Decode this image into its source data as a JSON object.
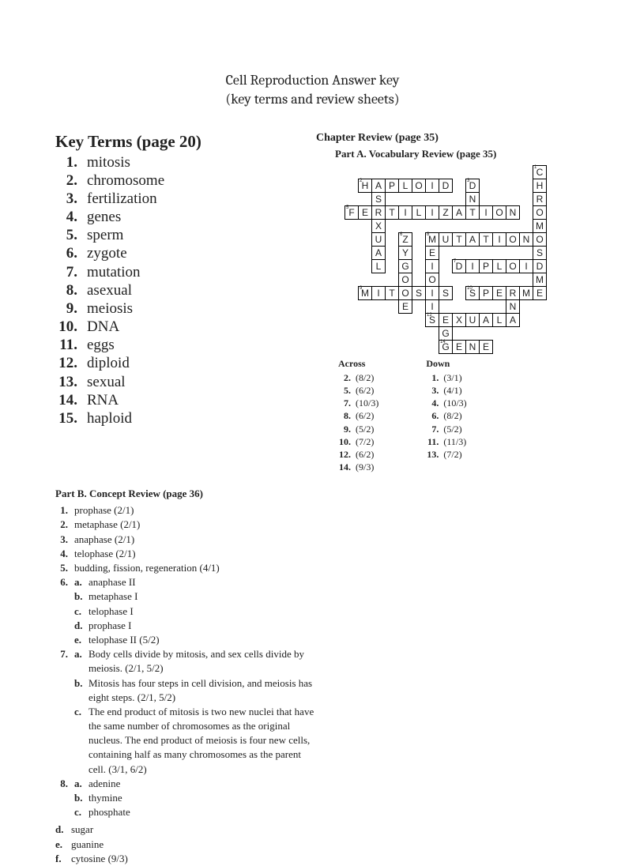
{
  "title": {
    "line1": "Cell Reproduction Answer key",
    "line2": "(key terms and review sheets)"
  },
  "keyTerms": {
    "heading": "Key Terms (page 20)",
    "items": [
      {
        "n": "1.",
        "t": "mitosis"
      },
      {
        "n": "2.",
        "t": "chromosome"
      },
      {
        "n": "3.",
        "t": "fertilization"
      },
      {
        "n": "4.",
        "t": "genes"
      },
      {
        "n": "5.",
        "t": "sperm"
      },
      {
        "n": "6.",
        "t": "zygote"
      },
      {
        "n": "7.",
        "t": "mutation"
      },
      {
        "n": "8.",
        "t": "asexual"
      },
      {
        "n": "9.",
        "t": "meiosis"
      },
      {
        "n": "10.",
        "t": "DNA"
      },
      {
        "n": "11.",
        "t": "eggs"
      },
      {
        "n": "12.",
        "t": "diploid"
      },
      {
        "n": "13.",
        "t": "sexual"
      },
      {
        "n": "14.",
        "t": "RNA"
      },
      {
        "n": "15.",
        "t": "haploid"
      }
    ]
  },
  "review": {
    "heading": "Chapter Review (page 35)",
    "partA": "Part A. Vocabulary Review (page 35)"
  },
  "crossword": {
    "cells": [
      {
        "r": 0,
        "c": 14,
        "l": "C",
        "n": "1"
      },
      {
        "r": 1,
        "c": 1,
        "l": "H",
        "n": "2"
      },
      {
        "r": 1,
        "c": 2,
        "l": "A"
      },
      {
        "r": 1,
        "c": 3,
        "l": "P"
      },
      {
        "r": 1,
        "c": 4,
        "l": "L"
      },
      {
        "r": 1,
        "c": 5,
        "l": "O"
      },
      {
        "r": 1,
        "c": 6,
        "l": "I"
      },
      {
        "r": 1,
        "c": 7,
        "l": "D"
      },
      {
        "r": 1,
        "c": 9,
        "l": "D",
        "n": "3"
      },
      {
        "r": 1,
        "c": 14,
        "l": "H"
      },
      {
        "r": 2,
        "c": 2,
        "l": "S"
      },
      {
        "r": 2,
        "c": 9,
        "l": "N"
      },
      {
        "r": 2,
        "c": 14,
        "l": "R"
      },
      {
        "r": 3,
        "c": 0,
        "l": "F",
        "n": "5"
      },
      {
        "r": 3,
        "c": 1,
        "l": "E"
      },
      {
        "r": 3,
        "c": 2,
        "l": "R"
      },
      {
        "r": 3,
        "c": 3,
        "l": "T"
      },
      {
        "r": 3,
        "c": 4,
        "l": "I"
      },
      {
        "r": 3,
        "c": 5,
        "l": "L"
      },
      {
        "r": 3,
        "c": 6,
        "l": "I"
      },
      {
        "r": 3,
        "c": 7,
        "l": "Z"
      },
      {
        "r": 3,
        "c": 8,
        "l": "A"
      },
      {
        "r": 3,
        "c": 9,
        "l": "T"
      },
      {
        "r": 3,
        "c": 10,
        "l": "I"
      },
      {
        "r": 3,
        "c": 11,
        "l": "O"
      },
      {
        "r": 3,
        "c": 12,
        "l": "N"
      },
      {
        "r": 3,
        "c": 14,
        "l": "O"
      },
      {
        "r": 4,
        "c": 2,
        "l": "X"
      },
      {
        "r": 4,
        "c": 14,
        "l": "M"
      },
      {
        "r": 5,
        "c": 2,
        "l": "U"
      },
      {
        "r": 5,
        "c": 4,
        "l": "Z",
        "n": "6"
      },
      {
        "r": 5,
        "c": 6,
        "l": "M",
        "n": "8"
      },
      {
        "r": 5,
        "c": 7,
        "l": "U"
      },
      {
        "r": 5,
        "c": 8,
        "l": "T"
      },
      {
        "r": 5,
        "c": 9,
        "l": "A"
      },
      {
        "r": 5,
        "c": 10,
        "l": "T"
      },
      {
        "r": 5,
        "c": 11,
        "l": "I"
      },
      {
        "r": 5,
        "c": 12,
        "l": "O"
      },
      {
        "r": 5,
        "c": 13,
        "l": "N"
      },
      {
        "r": 5,
        "c": 14,
        "l": "O"
      },
      {
        "r": 6,
        "c": 2,
        "l": "A"
      },
      {
        "r": 6,
        "c": 4,
        "l": "Y"
      },
      {
        "r": 6,
        "c": 6,
        "l": "E"
      },
      {
        "r": 6,
        "c": 14,
        "l": "S"
      },
      {
        "r": 7,
        "c": 2,
        "l": "L"
      },
      {
        "r": 7,
        "c": 4,
        "l": "G"
      },
      {
        "r": 7,
        "c": 6,
        "l": "I"
      },
      {
        "r": 7,
        "c": 8,
        "l": "D",
        "n": "7"
      },
      {
        "r": 7,
        "c": 9,
        "l": "I"
      },
      {
        "r": 7,
        "c": 10,
        "l": "P"
      },
      {
        "r": 7,
        "c": 11,
        "l": "L"
      },
      {
        "r": 7,
        "c": 12,
        "l": "O"
      },
      {
        "r": 7,
        "c": 13,
        "l": "I"
      },
      {
        "r": 7,
        "c": 14,
        "l": "D"
      },
      {
        "r": 8,
        "c": 4,
        "l": "O"
      },
      {
        "r": 8,
        "c": 6,
        "l": "O"
      },
      {
        "r": 8,
        "c": 14,
        "l": "M"
      },
      {
        "r": 9,
        "c": 1,
        "l": "M",
        "n": "9"
      },
      {
        "r": 9,
        "c": 2,
        "l": "I"
      },
      {
        "r": 9,
        "c": 3,
        "l": "T"
      },
      {
        "r": 9,
        "c": 4,
        "l": "O"
      },
      {
        "r": 9,
        "c": 5,
        "l": "S"
      },
      {
        "r": 9,
        "c": 6,
        "l": "I"
      },
      {
        "r": 9,
        "c": 7,
        "l": "S"
      },
      {
        "r": 9,
        "c": 9,
        "l": "S",
        "n": "10"
      },
      {
        "r": 9,
        "c": 10,
        "l": "P"
      },
      {
        "r": 9,
        "c": 11,
        "l": "E"
      },
      {
        "r": 9,
        "c": 12,
        "l": "R"
      },
      {
        "r": 9,
        "c": 13,
        "l": "M"
      },
      {
        "r": 9,
        "c": 14,
        "l": "E"
      },
      {
        "r": 10,
        "c": 4,
        "l": "E"
      },
      {
        "r": 10,
        "c": 6,
        "l": "I"
      },
      {
        "r": 10,
        "c": 12,
        "l": "N"
      },
      {
        "r": 11,
        "c": 6,
        "l": "S",
        "n": "12"
      },
      {
        "r": 11,
        "c": 7,
        "l": "E"
      },
      {
        "r": 11,
        "c": 8,
        "l": "X"
      },
      {
        "r": 11,
        "c": 9,
        "l": "U"
      },
      {
        "r": 11,
        "c": 10,
        "l": "A"
      },
      {
        "r": 11,
        "c": 11,
        "l": "L"
      },
      {
        "r": 11,
        "c": 12,
        "l": "A"
      },
      {
        "r": 12,
        "c": 7,
        "l": "G"
      },
      {
        "r": 13,
        "c": 7,
        "l": "G",
        "n": "14"
      },
      {
        "r": 13,
        "c": 8,
        "l": "E"
      },
      {
        "r": 13,
        "c": 9,
        "l": "N"
      },
      {
        "r": 13,
        "c": 10,
        "l": "E"
      }
    ]
  },
  "clues": {
    "acrossTitle": "Across",
    "downTitle": "Down",
    "across": [
      {
        "n": "2.",
        "t": "(8/2)"
      },
      {
        "n": "5.",
        "t": "(6/2)"
      },
      {
        "n": "7.",
        "t": "(10/3)"
      },
      {
        "n": "8.",
        "t": "(6/2)"
      },
      {
        "n": "9.",
        "t": "(5/2)"
      },
      {
        "n": "10.",
        "t": "(7/2)"
      },
      {
        "n": "12.",
        "t": "(6/2)"
      },
      {
        "n": "14.",
        "t": "(9/3)"
      }
    ],
    "down": [
      {
        "n": "1.",
        "t": "(3/1)"
      },
      {
        "n": "3.",
        "t": "(4/1)"
      },
      {
        "n": "4.",
        "t": "(10/3)"
      },
      {
        "n": "6.",
        "t": "(8/2)"
      },
      {
        "n": "7.",
        "t": "(5/2)"
      },
      {
        "n": "11.",
        "t": "(11/3)"
      },
      {
        "n": "13.",
        "t": "(7/2)"
      }
    ]
  },
  "partB": {
    "heading": "Part B. Concept Review (page 36)",
    "items": [
      {
        "n": "1.",
        "text": "prophase (2/1)"
      },
      {
        "n": "2.",
        "text": "metaphase (2/1)"
      },
      {
        "n": "3.",
        "text": "anaphase (2/1)"
      },
      {
        "n": "4.",
        "text": "telophase (2/1)"
      },
      {
        "n": "5.",
        "text": "budding, fission, regeneration (4/1)"
      },
      {
        "n": "6.",
        "sub": [
          {
            "l": "a.",
            "t": "anaphase II"
          },
          {
            "l": "b.",
            "t": "metaphase I"
          },
          {
            "l": "c.",
            "t": "telophase I"
          },
          {
            "l": "d.",
            "t": "prophase I"
          },
          {
            "l": "e.",
            "t": "telophase II (5/2)"
          }
        ]
      },
      {
        "n": "7.",
        "sub": [
          {
            "l": "a.",
            "t": "Body cells divide by mitosis, and sex cells divide by meiosis. (2/1, 5/2)"
          },
          {
            "l": "b.",
            "t": "Mitosis has four steps in cell division, and meiosis has eight steps. (2/1, 5/2)"
          },
          {
            "l": "c.",
            "t": "The end product of mitosis is two new nuclei that have the same number of chromosomes as the original nucleus. The end product of meiosis is four new cells, containing half as many chromosomes as the parent cell. (3/1, 6/2)"
          }
        ]
      },
      {
        "n": "8.",
        "sub": [
          {
            "l": "a.",
            "t": "adenine"
          },
          {
            "l": "b.",
            "t": "thymine"
          },
          {
            "l": "c.",
            "t": "phosphate"
          }
        ]
      }
    ],
    "dangling": [
      {
        "l": "d.",
        "t": "sugar"
      },
      {
        "l": "e.",
        "t": "guanine"
      },
      {
        "l": "f.",
        "t": "cytosine (9/3)"
      }
    ]
  }
}
